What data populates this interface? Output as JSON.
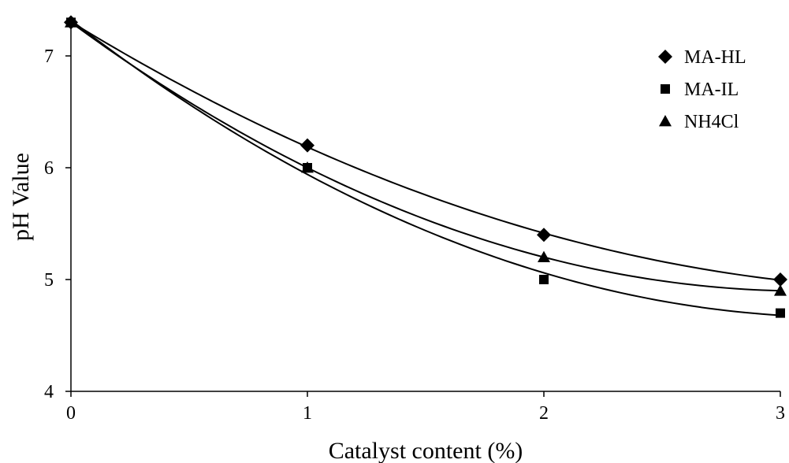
{
  "chart_data": {
    "type": "scatter",
    "title": "",
    "xlabel": "Catalyst content (%)",
    "ylabel": "pH Value",
    "xlim": [
      0,
      3
    ],
    "ylim": [
      4,
      7.3
    ],
    "x_ticks": [
      "0",
      "1",
      "2",
      "3"
    ],
    "y_ticks": [
      "4",
      "5",
      "6",
      "7"
    ],
    "grid": false,
    "legend_position": "top-right",
    "trendline": "polynomial (order 2)",
    "series": [
      {
        "name": "MA-HL",
        "marker": "diamond",
        "x": [
          0,
          1,
          2,
          3
        ],
        "y": [
          7.3,
          6.2,
          5.4,
          5.0
        ]
      },
      {
        "name": "MA-IL",
        "marker": "square",
        "x": [
          0,
          1,
          2,
          3
        ],
        "y": [
          7.3,
          6.0,
          5.0,
          4.7
        ]
      },
      {
        "name": "NH4Cl",
        "marker": "triangle",
        "x": [
          0,
          1,
          2,
          3
        ],
        "y": [
          7.3,
          6.0,
          5.2,
          4.9
        ]
      }
    ]
  },
  "colors": {
    "ink": "#000000",
    "background": "#ffffff"
  }
}
